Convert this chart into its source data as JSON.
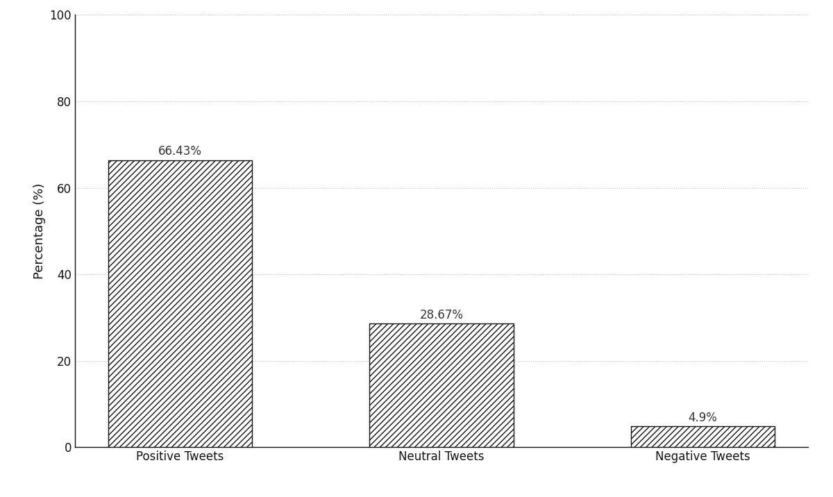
{
  "categories": [
    "Positive Tweets",
    "Neutral Tweets",
    "Negative Tweets"
  ],
  "values": [
    66.43,
    28.67,
    4.9
  ],
  "labels": [
    "66.43%",
    "28.67%",
    "4.9%"
  ],
  "ylabel": "Percentage (%)",
  "ylim": [
    0,
    100
  ],
  "yticks": [
    0,
    20,
    40,
    60,
    80,
    100
  ],
  "bar_color": "white",
  "bar_edgecolor": "#111111",
  "hatch_pattern": "////",
  "background_color": "#ffffff",
  "grid_color": "#bbbbbb",
  "grid_linestyle": ":",
  "bar_width": 0.55,
  "annotation_fontsize": 12,
  "axis_label_fontsize": 13,
  "tick_fontsize": 12,
  "spine_color": "#111111"
}
